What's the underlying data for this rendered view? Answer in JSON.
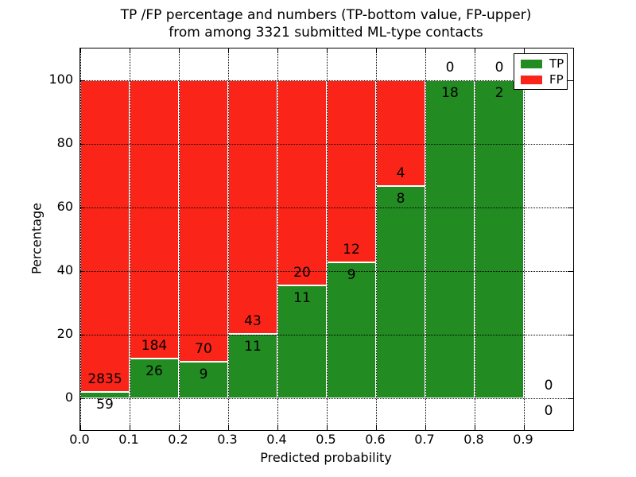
{
  "figure": {
    "title_line1": "TP /FP percentage and numbers (TP-bottom value, FP-upper)",
    "title_line2": "from among 3321 submitted ML-type contacts"
  },
  "axes": {
    "x_label": "Predicted probability",
    "y_label": "Percentage",
    "x_ticks": [
      "0.0",
      "0.1",
      "0.2",
      "0.3",
      "0.4",
      "0.5",
      "0.6",
      "0.7",
      "0.8",
      "0.9"
    ],
    "y_ticks": [
      "0",
      "20",
      "40",
      "60",
      "80",
      "100"
    ],
    "x_range": [
      0.0,
      1.0
    ],
    "y_range": [
      -10,
      110
    ],
    "grid_style": "dotted"
  },
  "legend": {
    "position": "upper-right",
    "items": [
      {
        "id": "tp",
        "label": "TP",
        "color": "#228b22"
      },
      {
        "id": "fp",
        "label": "FP",
        "color": "#fa2418"
      }
    ]
  },
  "chart_data": {
    "type": "bar",
    "stacked": true,
    "normalized": "each bin scaled to 100% of bin total",
    "title": "TP /FP percentage and numbers (TP-bottom value, FP-upper) from among 3321 submitted ML-type contacts",
    "xlabel": "Predicted probability",
    "ylabel": "Percentage",
    "total_contacts": 3321,
    "bin_width": 0.1,
    "colors": {
      "tp": "#228b22",
      "fp": "#fa2418"
    },
    "label_convention": "FP count printed above TP/FP boundary, TP count printed below it",
    "bins": [
      {
        "x_start": 0.0,
        "x_end": 0.1,
        "tp_count": 59,
        "fp_count": 2835,
        "tp_pct": 2.0
      },
      {
        "x_start": 0.1,
        "x_end": 0.2,
        "tp_count": 26,
        "fp_count": 184,
        "tp_pct": 12.4
      },
      {
        "x_start": 0.2,
        "x_end": 0.3,
        "tp_count": 9,
        "fp_count": 70,
        "tp_pct": 11.4
      },
      {
        "x_start": 0.3,
        "x_end": 0.4,
        "tp_count": 11,
        "fp_count": 43,
        "tp_pct": 20.4
      },
      {
        "x_start": 0.4,
        "x_end": 0.5,
        "tp_count": 11,
        "fp_count": 20,
        "tp_pct": 35.5
      },
      {
        "x_start": 0.5,
        "x_end": 0.6,
        "tp_count": 9,
        "fp_count": 12,
        "tp_pct": 42.9
      },
      {
        "x_start": 0.6,
        "x_end": 0.7,
        "tp_count": 8,
        "fp_count": 4,
        "tp_pct": 66.7
      },
      {
        "x_start": 0.7,
        "x_end": 0.8,
        "tp_count": 18,
        "fp_count": 0,
        "tp_pct": 100
      },
      {
        "x_start": 0.8,
        "x_end": 0.9,
        "tp_count": 2,
        "fp_count": 0,
        "tp_pct": 100
      },
      {
        "x_start": 0.9,
        "x_end": 1.0,
        "tp_count": 0,
        "fp_count": 0,
        "tp_pct": null
      }
    ]
  }
}
